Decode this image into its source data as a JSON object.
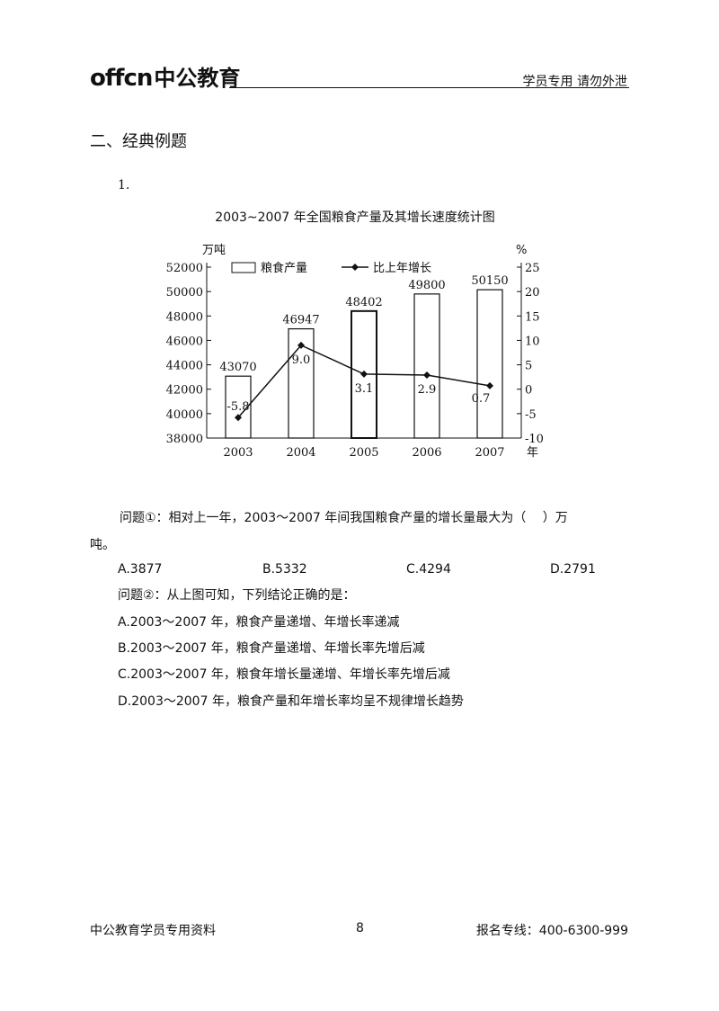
{
  "header": {
    "logo_latin": "offcn",
    "logo_cn": "中公教育",
    "right_text": "学员专用 请勿外泄"
  },
  "section_title": "二、经典例题",
  "question_number": "1.",
  "chart_data": {
    "type": "bar",
    "title": "2003~2007 年全国粮食产量及其增长速度统计图",
    "categories": [
      "2003",
      "2004",
      "2005",
      "2006",
      "2007"
    ],
    "xlabel": "年",
    "series": [
      {
        "name": "粮食产量",
        "type": "bar",
        "axis": "left",
        "values": [
          43070,
          46947,
          48402,
          49800,
          50150
        ]
      },
      {
        "name": "比上年增长",
        "type": "line",
        "axis": "right",
        "values": [
          -5.8,
          9.0,
          3.1,
          2.9,
          0.7
        ]
      }
    ],
    "left_axis": {
      "unit": "万吨",
      "ylim": [
        38000,
        52000
      ],
      "ticks": [
        "52000",
        "50000",
        "48000",
        "46000",
        "44000",
        "42000",
        "40000",
        "38000"
      ]
    },
    "right_axis": {
      "unit": "%",
      "ylim": [
        -10,
        25
      ],
      "ticks": [
        "25",
        "20",
        "15",
        "10",
        "5",
        "0",
        "-5",
        "-10"
      ]
    },
    "bar_labels": [
      "43070",
      "46947",
      "48402",
      "49800",
      "50150"
    ],
    "line_labels": [
      "-5.8",
      "9.0",
      "3.1",
      "2.9",
      "0.7"
    ],
    "legend": {
      "placement": "top",
      "bar_label": "粮食产量",
      "line_label": "比上年增长"
    },
    "grid": false
  },
  "questions": {
    "q1_line1": "问题①：相对上一年，2003～2007 年间我国粮食产量的增长量最大为（　 ）万",
    "q1_line2": "吨。",
    "q1_options": [
      "A.3877",
      "B.5332",
      "C.4294",
      "D.2791"
    ],
    "q2_stem": "问题②：从上图可知，下列结论正确的是：",
    "q2_options": [
      "A.2003～2007 年，粮食产量递增、年增长率递减",
      "B.2003～2007 年，粮食产量递增、年增长率先增后减",
      "C.2003～2007 年，粮食年增长量递增、年增长率先增后减",
      "D.2003～2007 年，粮食产量和年增长率均呈不规律增长趋势"
    ]
  },
  "footer": {
    "left": "中公教育学员专用资料",
    "page_number": "8",
    "right": "报名专线：400-6300-999"
  }
}
